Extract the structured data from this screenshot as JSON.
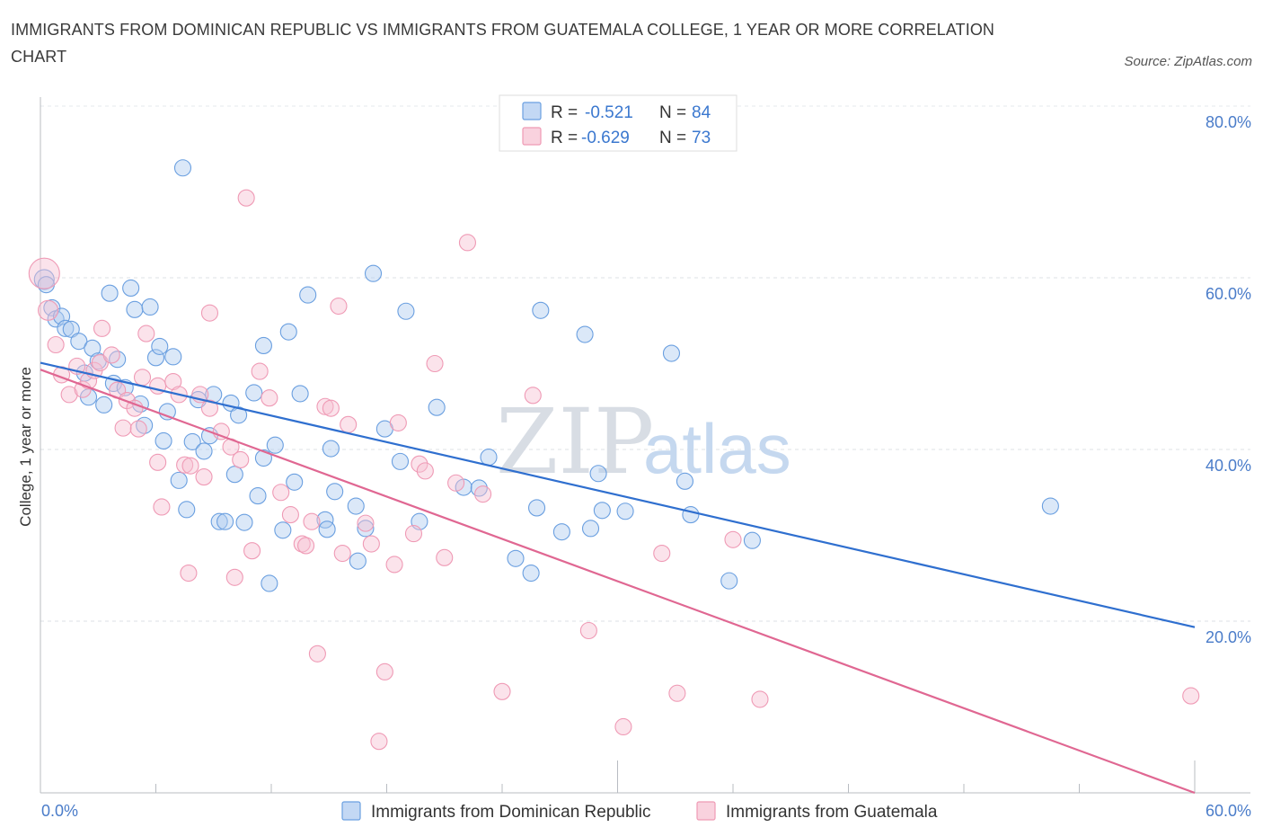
{
  "title": "IMMIGRANTS FROM DOMINICAN REPUBLIC VS IMMIGRANTS FROM GUATEMALA COLLEGE, 1 YEAR OR MORE CORRELATION CHART",
  "source": "Source: ZipAtlas.com",
  "watermark": {
    "zip": "ZIP",
    "atlas": "atlas"
  },
  "colors": {
    "blue": "#6a9fe0",
    "blue_line": "#2f6fcf",
    "pink": "#ef9ab5",
    "pink_line": "#e06792",
    "accent_text": "#4a7cc9"
  },
  "legend": {
    "series1": {
      "r_label": "R =",
      "r_value": "-0.521",
      "n_label": "N =",
      "n_value": "84"
    },
    "series2": {
      "r_label": "R =",
      "r_value": "-0.629",
      "n_label": "N =",
      "n_value": "73"
    }
  },
  "chart_data": {
    "type": "scatter",
    "title": "IMMIGRANTS FROM DOMINICAN REPUBLIC VS IMMIGRANTS FROM GUATEMALA COLLEGE, 1 YEAR OR MORE CORRELATION CHART",
    "xlabel": "",
    "ylabel": "College, 1 year or more",
    "xlim": [
      0,
      60
    ],
    "ylim": [
      0,
      80
    ],
    "x_tick_labels": [
      "0.0%",
      "60.0%"
    ],
    "y_tick_labels": [
      "20.0%",
      "40.0%",
      "60.0%",
      "80.0%"
    ],
    "y_ticks": [
      20,
      40,
      60,
      80
    ],
    "grid": true,
    "legend_position": "top-center",
    "series": [
      {
        "name": "Immigrants from Dominican Republic",
        "color": "#6a9fe0",
        "trend": {
          "x": [
            0,
            60
          ],
          "y": [
            50.1,
            19.3
          ]
        },
        "points": [
          [
            0.2,
            59.8
          ],
          [
            0.3,
            59.2
          ],
          [
            0.6,
            56.5
          ],
          [
            0.8,
            55.2
          ],
          [
            1.1,
            55.5
          ],
          [
            1.3,
            54.1
          ],
          [
            1.6,
            54.0
          ],
          [
            2.0,
            52.6
          ],
          [
            2.3,
            48.9
          ],
          [
            2.5,
            46.1
          ],
          [
            2.7,
            51.8
          ],
          [
            3.0,
            50.3
          ],
          [
            3.3,
            45.2
          ],
          [
            3.6,
            58.2
          ],
          [
            3.8,
            47.7
          ],
          [
            4.0,
            50.5
          ],
          [
            4.4,
            47.2
          ],
          [
            4.7,
            58.8
          ],
          [
            4.9,
            56.3
          ],
          [
            5.2,
            45.3
          ],
          [
            5.4,
            42.8
          ],
          [
            5.7,
            56.6
          ],
          [
            6.0,
            50.7
          ],
          [
            6.2,
            52.0
          ],
          [
            6.4,
            41.0
          ],
          [
            6.6,
            44.4
          ],
          [
            6.9,
            50.8
          ],
          [
            7.2,
            36.4
          ],
          [
            7.4,
            72.8
          ],
          [
            7.6,
            33.0
          ],
          [
            7.9,
            40.9
          ],
          [
            8.2,
            45.8
          ],
          [
            8.5,
            39.8
          ],
          [
            8.8,
            41.6
          ],
          [
            9.0,
            46.4
          ],
          [
            9.3,
            31.6
          ],
          [
            9.6,
            31.6
          ],
          [
            9.9,
            45.4
          ],
          [
            10.1,
            37.1
          ],
          [
            10.3,
            44.0
          ],
          [
            10.6,
            31.5
          ],
          [
            11.1,
            46.6
          ],
          [
            11.3,
            34.6
          ],
          [
            11.6,
            52.1
          ],
          [
            11.6,
            39.0
          ],
          [
            11.9,
            24.4
          ],
          [
            12.2,
            40.5
          ],
          [
            12.6,
            30.6
          ],
          [
            12.9,
            53.7
          ],
          [
            13.2,
            36.2
          ],
          [
            13.5,
            46.5
          ],
          [
            13.9,
            58.0
          ],
          [
            14.8,
            31.8
          ],
          [
            14.9,
            30.7
          ],
          [
            15.1,
            40.1
          ],
          [
            15.3,
            35.1
          ],
          [
            16.4,
            33.4
          ],
          [
            16.5,
            27.0
          ],
          [
            16.9,
            30.8
          ],
          [
            17.3,
            60.5
          ],
          [
            17.9,
            42.4
          ],
          [
            18.7,
            38.6
          ],
          [
            19.0,
            56.1
          ],
          [
            19.7,
            31.6
          ],
          [
            20.6,
            44.9
          ],
          [
            22.0,
            35.6
          ],
          [
            22.8,
            35.5
          ],
          [
            23.3,
            39.1
          ],
          [
            24.7,
            27.3
          ],
          [
            25.5,
            25.6
          ],
          [
            25.8,
            33.2
          ],
          [
            26.0,
            56.2
          ],
          [
            27.1,
            30.4
          ],
          [
            28.3,
            53.4
          ],
          [
            28.6,
            30.8
          ],
          [
            29.0,
            37.2
          ],
          [
            29.2,
            32.9
          ],
          [
            30.4,
            32.8
          ],
          [
            32.8,
            51.2
          ],
          [
            33.5,
            36.3
          ],
          [
            33.8,
            32.4
          ],
          [
            35.8,
            24.7
          ],
          [
            37.0,
            29.4
          ],
          [
            52.5,
            33.4
          ]
        ]
      },
      {
        "name": "Immigrants from Guatemala",
        "color": "#ef9ab5",
        "trend": {
          "x": [
            0,
            60
          ],
          "y": [
            49.3,
            0.0
          ]
        },
        "points": [
          [
            0.2,
            60.5
          ],
          [
            0.4,
            56.2
          ],
          [
            0.8,
            52.2
          ],
          [
            1.1,
            48.7
          ],
          [
            1.5,
            46.4
          ],
          [
            1.9,
            49.7
          ],
          [
            2.2,
            47.0
          ],
          [
            2.5,
            48.0
          ],
          [
            2.8,
            49.2
          ],
          [
            3.1,
            50.1
          ],
          [
            3.2,
            54.1
          ],
          [
            3.7,
            51.0
          ],
          [
            4.0,
            46.9
          ],
          [
            4.3,
            42.5
          ],
          [
            4.5,
            45.7
          ],
          [
            4.9,
            44.8
          ],
          [
            5.1,
            42.4
          ],
          [
            5.3,
            48.4
          ],
          [
            5.5,
            53.5
          ],
          [
            6.1,
            47.4
          ],
          [
            6.1,
            38.5
          ],
          [
            6.3,
            33.3
          ],
          [
            6.9,
            47.9
          ],
          [
            7.2,
            46.4
          ],
          [
            7.5,
            38.2
          ],
          [
            7.7,
            25.6
          ],
          [
            7.8,
            38.1
          ],
          [
            8.3,
            46.4
          ],
          [
            8.5,
            36.8
          ],
          [
            8.8,
            55.9
          ],
          [
            8.8,
            44.8
          ],
          [
            9.4,
            42.1
          ],
          [
            9.9,
            40.3
          ],
          [
            10.1,
            25.1
          ],
          [
            10.4,
            38.8
          ],
          [
            10.7,
            69.3
          ],
          [
            11.0,
            28.2
          ],
          [
            11.4,
            49.1
          ],
          [
            11.9,
            46.0
          ],
          [
            12.5,
            35.0
          ],
          [
            13.0,
            32.4
          ],
          [
            13.6,
            29.0
          ],
          [
            13.8,
            28.8
          ],
          [
            14.1,
            31.6
          ],
          [
            14.4,
            16.2
          ],
          [
            14.8,
            45.0
          ],
          [
            15.1,
            44.8
          ],
          [
            15.5,
            56.7
          ],
          [
            15.7,
            27.9
          ],
          [
            16.0,
            42.9
          ],
          [
            16.9,
            31.4
          ],
          [
            17.2,
            29.0
          ],
          [
            17.6,
            6.0
          ],
          [
            17.9,
            14.1
          ],
          [
            18.4,
            26.6
          ],
          [
            18.6,
            43.1
          ],
          [
            19.4,
            30.2
          ],
          [
            19.7,
            38.3
          ],
          [
            20.0,
            37.5
          ],
          [
            20.5,
            50.0
          ],
          [
            21.0,
            27.4
          ],
          [
            21.6,
            36.1
          ],
          [
            23.0,
            34.8
          ],
          [
            24.0,
            11.8
          ],
          [
            25.6,
            46.3
          ],
          [
            28.5,
            18.9
          ],
          [
            30.3,
            7.7
          ],
          [
            32.3,
            27.9
          ],
          [
            33.1,
            11.6
          ],
          [
            36.0,
            29.5
          ],
          [
            37.4,
            10.9
          ],
          [
            59.8,
            11.3
          ],
          [
            22.2,
            64.1
          ]
        ]
      }
    ]
  }
}
